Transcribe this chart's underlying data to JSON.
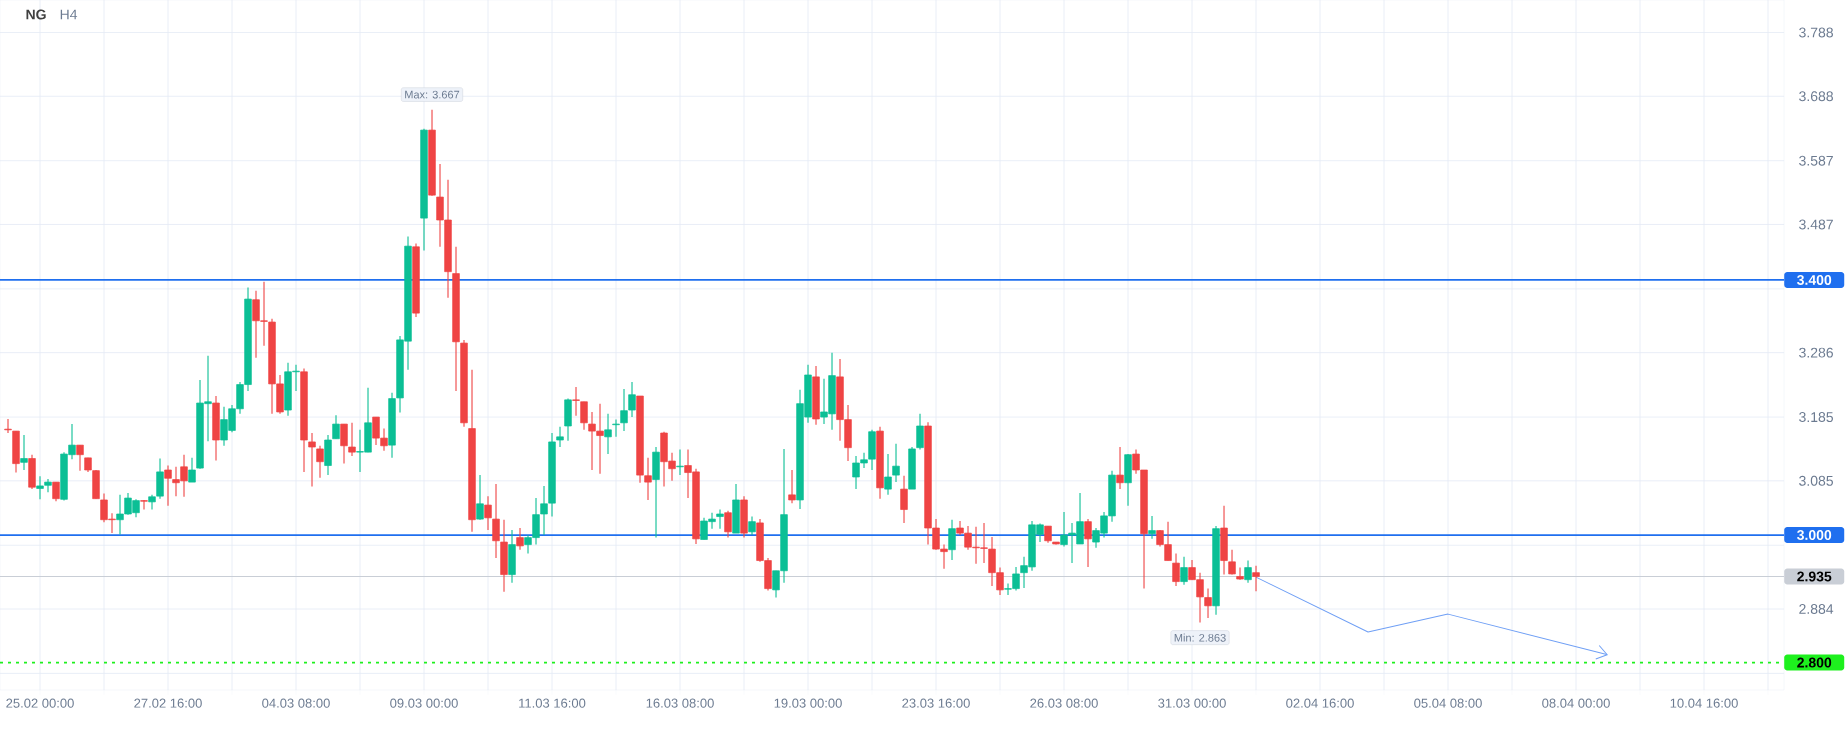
{
  "chart_data": {
    "type": "candlestick",
    "title": "NG",
    "subtitle": "H4",
    "categories": [
      null,
      null,
      null,
      null,
      "25.02 00:00",
      null,
      null,
      null,
      null,
      null,
      null,
      null,
      null,
      null,
      null,
      null,
      null,
      null,
      null,
      null,
      "27.02 16:00",
      null,
      null,
      null,
      null,
      null,
      null,
      null,
      null,
      null,
      null,
      null,
      null,
      null,
      null,
      null,
      "04.03 08:00",
      null,
      null,
      null,
      null,
      null,
      null,
      null,
      null,
      null,
      null,
      null,
      null,
      null,
      null,
      null,
      "09.03 00:00",
      null,
      null,
      null,
      null,
      null,
      null,
      null,
      null,
      null,
      null,
      null,
      null,
      null,
      null,
      null,
      "11.03 16:00",
      null,
      null,
      null,
      null,
      null,
      null,
      null,
      null,
      null,
      null,
      null,
      null,
      null,
      null,
      null,
      "16.03 08:00",
      null,
      null,
      null,
      null,
      null,
      null,
      null,
      null,
      null,
      null,
      null,
      null,
      null,
      null,
      null,
      "19.03 00:00",
      null,
      null,
      null,
      null,
      null,
      null,
      null,
      null,
      null,
      null,
      null,
      null,
      null,
      null,
      null,
      "23.03 16:00",
      null,
      null,
      null,
      null,
      null,
      null,
      null,
      null,
      null,
      null,
      null,
      null,
      null,
      null,
      null,
      "26.03 08:00",
      null,
      null,
      null,
      null,
      null,
      null,
      null,
      null,
      null,
      null,
      null,
      null,
      null,
      null,
      null,
      "31.03 00:00",
      null,
      null,
      null,
      null,
      null,
      null,
      null,
      null,
      null,
      null,
      null,
      null,
      null,
      null,
      null,
      "02.04 16:00",
      null,
      null,
      null,
      null,
      null,
      null,
      null,
      null,
      null,
      null,
      null,
      null,
      null,
      null,
      null,
      "05.04 08:00",
      null,
      null,
      null,
      null,
      null,
      null,
      null,
      null,
      null,
      null,
      null,
      null,
      null,
      null,
      null,
      "08.04 00:00",
      null,
      null,
      null,
      null,
      null,
      null,
      null,
      null,
      null,
      null,
      null,
      null,
      null,
      null,
      null,
      "10.04 16:00",
      null,
      null,
      null,
      null,
      null,
      null,
      null,
      null,
      null
    ],
    "ohlc": [
      [
        3.166,
        3.182,
        3.16,
        3.165
      ],
      [
        3.163,
        3.163,
        3.098,
        3.112
      ],
      [
        3.114,
        3.157,
        3.102,
        3.12
      ],
      [
        3.12,
        3.126,
        3.072,
        3.075
      ],
      [
        3.073,
        3.092,
        3.056,
        3.077
      ],
      [
        3.078,
        3.088,
        3.067,
        3.083
      ],
      [
        3.083,
        3.083,
        3.053,
        3.057
      ],
      [
        3.056,
        3.13,
        3.054,
        3.127
      ],
      [
        3.126,
        3.174,
        3.119,
        3.141
      ],
      [
        3.141,
        3.141,
        3.101,
        3.126
      ],
      [
        3.121,
        3.121,
        3.099,
        3.102
      ],
      [
        3.101,
        3.102,
        3.057,
        3.057
      ],
      [
        3.055,
        3.065,
        3.02,
        3.024
      ],
      [
        3.025,
        3.034,
        3.003,
        3.024
      ],
      [
        3.024,
        3.063,
        3.001,
        3.033
      ],
      [
        3.033,
        3.066,
        3.032,
        3.058
      ],
      [
        3.035,
        3.056,
        3.028,
        3.054
      ],
      [
        3.054,
        3.055,
        3.04,
        3.053
      ],
      [
        3.052,
        3.063,
        3.04,
        3.06
      ],
      [
        3.061,
        3.12,
        3.057,
        3.099
      ],
      [
        3.102,
        3.109,
        3.046,
        3.089
      ],
      [
        3.087,
        3.107,
        3.061,
        3.082
      ],
      [
        3.107,
        3.126,
        3.06,
        3.085
      ],
      [
        3.083,
        3.121,
        3.083,
        3.102
      ],
      [
        3.105,
        3.243,
        3.104,
        3.207
      ],
      [
        3.206,
        3.281,
        3.147,
        3.209
      ],
      [
        3.207,
        3.218,
        3.117,
        3.149
      ],
      [
        3.149,
        3.201,
        3.14,
        3.181
      ],
      [
        3.164,
        3.204,
        3.161,
        3.198
      ],
      [
        3.198,
        3.24,
        3.19,
        3.236
      ],
      [
        3.236,
        3.388,
        3.226,
        3.37
      ],
      [
        3.369,
        3.383,
        3.278,
        3.336
      ],
      [
        3.336,
        3.397,
        3.297,
        3.335
      ],
      [
        3.334,
        3.339,
        3.19,
        3.237
      ],
      [
        3.237,
        3.251,
        3.19,
        3.193
      ],
      [
        3.196,
        3.27,
        3.187,
        3.256
      ],
      [
        3.256,
        3.267,
        3.226,
        3.257
      ],
      [
        3.256,
        3.261,
        3.099,
        3.149
      ],
      [
        3.146,
        3.16,
        3.076,
        3.138
      ],
      [
        3.135,
        3.14,
        3.09,
        3.115
      ],
      [
        3.109,
        3.157,
        3.094,
        3.149
      ],
      [
        3.151,
        3.188,
        3.151,
        3.174
      ],
      [
        3.174,
        3.174,
        3.112,
        3.14
      ],
      [
        3.138,
        3.176,
        3.124,
        3.13
      ],
      [
        3.13,
        3.165,
        3.099,
        3.131
      ],
      [
        3.13,
        3.231,
        3.13,
        3.176
      ],
      [
        3.185,
        3.185,
        3.141,
        3.152
      ],
      [
        3.152,
        3.167,
        3.132,
        3.14
      ],
      [
        3.141,
        3.223,
        3.121,
        3.214
      ],
      [
        3.215,
        3.312,
        3.192,
        3.306
      ],
      [
        3.304,
        3.468,
        3.259,
        3.453
      ],
      [
        3.452,
        3.457,
        3.342,
        3.348
      ],
      [
        3.497,
        3.637,
        3.446,
        3.635
      ],
      [
        3.635,
        3.667,
        3.532,
        3.533
      ],
      [
        3.53,
        3.582,
        3.452,
        3.494
      ],
      [
        3.494,
        3.557,
        3.372,
        3.413
      ],
      [
        3.41,
        3.452,
        3.226,
        3.303
      ],
      [
        3.301,
        3.306,
        3.17,
        3.176
      ],
      [
        3.167,
        3.259,
        3.005,
        3.024
      ],
      [
        3.025,
        3.094,
        3.024,
        3.049
      ],
      [
        3.047,
        3.061,
        3.008,
        3.027
      ],
      [
        3.025,
        3.08,
        2.964,
        2.991
      ],
      [
        2.989,
        3.024,
        2.911,
        2.938
      ],
      [
        2.938,
        3.008,
        2.925,
        2.985
      ],
      [
        2.996,
        3.011,
        2.977,
        2.983
      ],
      [
        2.985,
        3.0,
        2.971,
        2.996
      ],
      [
        2.996,
        3.058,
        2.985,
        3.032
      ],
      [
        3.033,
        3.077,
        3.0,
        3.049
      ],
      [
        3.05,
        3.16,
        3.029,
        3.146
      ],
      [
        3.149,
        3.17,
        3.138,
        3.154
      ],
      [
        3.171,
        3.214,
        3.148,
        3.212
      ],
      [
        3.212,
        3.232,
        3.187,
        3.211
      ],
      [
        3.209,
        3.209,
        3.165,
        3.176
      ],
      [
        3.174,
        3.193,
        3.102,
        3.163
      ],
      [
        3.163,
        3.206,
        3.096,
        3.156
      ],
      [
        3.154,
        3.19,
        3.127,
        3.165
      ],
      [
        3.173,
        3.181,
        3.154,
        3.174
      ],
      [
        3.176,
        3.229,
        3.163,
        3.195
      ],
      [
        3.196,
        3.24,
        3.185,
        3.22
      ],
      [
        3.218,
        3.218,
        3.082,
        3.094
      ],
      [
        3.093,
        3.121,
        3.055,
        3.083
      ],
      [
        3.087,
        3.138,
        2.996,
        3.13
      ],
      [
        3.16,
        3.162,
        3.076,
        3.115
      ],
      [
        3.116,
        3.129,
        3.085,
        3.104
      ],
      [
        3.107,
        3.134,
        3.094,
        3.108
      ],
      [
        3.109,
        3.134,
        3.058,
        3.098
      ],
      [
        3.099,
        3.104,
        2.986,
        2.994
      ],
      [
        2.993,
        3.027,
        2.993,
        3.022
      ],
      [
        3.021,
        3.035,
        3.01,
        3.025
      ],
      [
        3.029,
        3.04,
        3.01,
        3.033
      ],
      [
        3.035,
        3.038,
        2.996,
        3.005
      ],
      [
        3.003,
        3.08,
        3.003,
        3.055
      ],
      [
        3.055,
        3.061,
        2.996,
        3.003
      ],
      [
        3.005,
        3.029,
        3.0,
        3.021
      ],
      [
        3.019,
        3.025,
        2.958,
        2.96
      ],
      [
        2.96,
        2.964,
        2.913,
        2.916
      ],
      [
        2.914,
        2.944,
        2.902,
        2.944
      ],
      [
        2.944,
        3.135,
        2.925,
        3.032
      ],
      [
        3.063,
        3.102,
        3.05,
        3.055
      ],
      [
        3.055,
        3.228,
        3.041,
        3.206
      ],
      [
        3.185,
        3.267,
        3.176,
        3.251
      ],
      [
        3.248,
        3.265,
        3.173,
        3.182
      ],
      [
        3.185,
        3.245,
        3.174,
        3.193
      ],
      [
        3.19,
        3.286,
        3.165,
        3.25
      ],
      [
        3.248,
        3.276,
        3.148,
        3.181
      ],
      [
        3.181,
        3.204,
        3.116,
        3.137
      ],
      [
        3.091,
        3.124,
        3.072,
        3.113
      ],
      [
        3.113,
        3.129,
        3.105,
        3.118
      ],
      [
        3.119,
        3.165,
        3.102,
        3.162
      ],
      [
        3.163,
        3.17,
        3.057,
        3.074
      ],
      [
        3.072,
        3.127,
        3.063,
        3.091
      ],
      [
        3.094,
        3.143,
        3.083,
        3.108
      ],
      [
        3.072,
        3.093,
        3.019,
        3.04
      ],
      [
        3.072,
        3.138,
        3.072,
        3.135
      ],
      [
        3.137,
        3.19,
        3.134,
        3.171
      ],
      [
        3.171,
        3.177,
        2.985,
        3.011
      ],
      [
        3.011,
        3.025,
        2.977,
        2.978
      ],
      [
        2.978,
        2.985,
        2.947,
        2.974
      ],
      [
        2.977,
        3.024,
        2.961,
        3.01
      ],
      [
        3.011,
        3.022,
        3.0,
        3.003
      ],
      [
        3.003,
        3.014,
        2.977,
        2.981
      ],
      [
        2.981,
        3.013,
        2.955,
        2.98
      ],
      [
        2.98,
        3.019,
        2.956,
        2.979
      ],
      [
        2.978,
        2.997,
        2.92,
        2.941
      ],
      [
        2.941,
        2.949,
        2.906,
        2.914
      ],
      [
        2.915,
        2.924,
        2.906,
        2.916
      ],
      [
        2.916,
        2.95,
        2.913,
        2.939
      ],
      [
        2.941,
        2.966,
        2.917,
        2.952
      ],
      [
        2.95,
        3.022,
        2.944,
        3.016
      ],
      [
        3.001,
        3.018,
        2.989,
        3.016
      ],
      [
        3.014,
        3.014,
        2.988,
        2.991
      ],
      [
        2.989,
        2.989,
        2.985,
        2.986
      ],
      [
        2.985,
        3.036,
        2.982,
        3.0
      ],
      [
        3.0,
        3.019,
        2.956,
        3.003
      ],
      [
        2.986,
        3.066,
        2.986,
        3.021
      ],
      [
        3.021,
        3.025,
        2.95,
        2.994
      ],
      [
        2.989,
        3.011,
        2.98,
        3.007
      ],
      [
        3.003,
        3.036,
        2.996,
        3.03
      ],
      [
        3.03,
        3.101,
        3.021,
        3.094
      ],
      [
        3.094,
        3.138,
        3.072,
        3.082
      ],
      [
        3.082,
        3.127,
        3.046,
        3.126
      ],
      [
        3.127,
        3.134,
        3.096,
        3.102
      ],
      [
        3.102,
        3.102,
        2.916,
        3.002
      ],
      [
        3.002,
        3.03,
        2.994,
        3.007
      ],
      [
        3.007,
        3.008,
        2.982,
        2.985
      ],
      [
        2.985,
        3.021,
        2.96,
        2.96
      ],
      [
        2.956,
        2.971,
        2.92,
        2.927
      ],
      [
        2.927,
        2.966,
        2.922,
        2.949
      ],
      [
        2.949,
        2.961,
        2.93,
        2.93
      ],
      [
        2.93,
        2.941,
        2.863,
        2.903
      ],
      [
        2.902,
        2.916,
        2.87,
        2.889
      ],
      [
        2.889,
        3.014,
        2.875,
        3.01
      ],
      [
        3.011,
        3.046,
        2.938,
        2.96
      ],
      [
        2.958,
        2.977,
        2.938,
        2.939
      ],
      [
        2.935,
        2.949,
        2.93,
        2.931
      ],
      [
        2.93,
        2.96,
        2.925,
        2.949
      ],
      [
        2.941,
        2.952,
        2.912,
        2.935
      ],
      null,
      null,
      null,
      null,
      null,
      null,
      null,
      null,
      null,
      null,
      null,
      null,
      null,
      null,
      null,
      null,
      null,
      null,
      null,
      null,
      null,
      null,
      null,
      null,
      null,
      null,
      null,
      null,
      null,
      null,
      null,
      null,
      null,
      null,
      null,
      null,
      null,
      null,
      null,
      null,
      null,
      null,
      null,
      null,
      null,
      null,
      null,
      null,
      null,
      null,
      null,
      null,
      null,
      null,
      null,
      null,
      null,
      null,
      null,
      null,
      null,
      null,
      null,
      null,
      null
    ],
    "series": [
      {
        "type": "line",
        "color": "#6f9ff5",
        "values": [
          null,
          null,
          null,
          null,
          null,
          null,
          null,
          null,
          null,
          null,
          null,
          null,
          null,
          null,
          null,
          null,
          null,
          null,
          null,
          null,
          null,
          null,
          null,
          null,
          null,
          null,
          null,
          null,
          null,
          null,
          null,
          null,
          null,
          null,
          null,
          null,
          null,
          null,
          null,
          null,
          null,
          null,
          null,
          null,
          null,
          null,
          null,
          null,
          null,
          null,
          null,
          null,
          null,
          null,
          null,
          null,
          null,
          null,
          null,
          null,
          null,
          null,
          null,
          null,
          null,
          null,
          null,
          null,
          null,
          null,
          null,
          null,
          null,
          null,
          null,
          null,
          null,
          null,
          null,
          null,
          null,
          null,
          null,
          null,
          null,
          null,
          null,
          null,
          null,
          null,
          null,
          null,
          null,
          null,
          null,
          null,
          null,
          null,
          null,
          null,
          null,
          null,
          null,
          null,
          null,
          null,
          null,
          null,
          null,
          null,
          null,
          null,
          null,
          null,
          null,
          null,
          null,
          null,
          null,
          null,
          null,
          null,
          null,
          null,
          null,
          null,
          null,
          null,
          null,
          null,
          null,
          null,
          null,
          null,
          null,
          null,
          null,
          null,
          null,
          null,
          null,
          null,
          null,
          null,
          null,
          null,
          null,
          null,
          null,
          null,
          null,
          null,
          null,
          null,
          null,
          null,
          2.934,
          null,
          null,
          null,
          null,
          null,
          null,
          null,
          null,
          null,
          null,
          null,
          null,
          null,
          2.848,
          null,
          null,
          null,
          null,
          null,
          null,
          null,
          null,
          null,
          2.876,
          null,
          null,
          null,
          null,
          null,
          null,
          null,
          null,
          null,
          null,
          null,
          null,
          null,
          null,
          null,
          null,
          null,
          null,
          null,
          2.812,
          null,
          null,
          null,
          null,
          null,
          null,
          null,
          null,
          null,
          null,
          null,
          null,
          null,
          null,
          null,
          null,
          null,
          null,
          null,
          null,
          null
        ]
      }
    ],
    "ylim": [
      2.757,
      3.839
    ],
    "yticks": [
      3.788,
      3.688,
      3.587,
      3.487,
      {
        "value": 3.386,
        "label": null
      },
      3.286,
      3.185,
      3.085,
      {
        "value": 2.984,
        "label": null
      },
      2.884,
      {
        "value": 2.783,
        "label": null
      }
    ],
    "grid": true,
    "ref_lines": [
      {
        "axis": "y",
        "value": 3.4,
        "label": "3.400",
        "color": "#1f6fef",
        "line_style": "solid"
      },
      {
        "axis": "y",
        "value": 3.0,
        "label": "3.000",
        "color": "#1f6fef",
        "line_style": "solid"
      },
      {
        "axis": "y",
        "value": 2.935,
        "label": "2.935",
        "color": "#c9ced6",
        "line_style": "solid"
      },
      {
        "axis": "y",
        "value": 2.8,
        "label": "2.800",
        "color": "#1ef01e",
        "line_style": "dotted"
      }
    ],
    "annotations": [
      {
        "text": "Max: 3.667",
        "y": 3.667
      },
      {
        "text": "Min: 2.863",
        "y": 2.863
      }
    ]
  }
}
